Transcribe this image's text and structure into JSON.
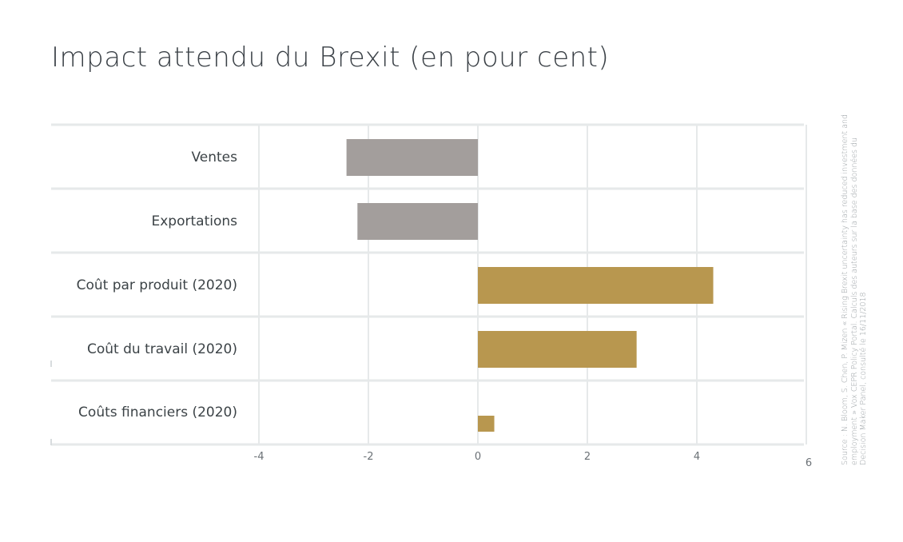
{
  "chart_data": {
    "type": "bar",
    "orientation": "horizontal",
    "title": "Impact attendu du Brexit (en pour cent)",
    "categories": [
      "Ventes",
      "Exportations",
      "Coût par produit (2020)",
      "Coût du travail (2020)",
      "Coûts financiers (2020)"
    ],
    "values": [
      -2.4,
      -2.2,
      4.3,
      2.9,
      0.3
    ],
    "bar_colors": [
      "#a39e9c",
      "#a39e9c",
      "#b8974f",
      "#b8974f",
      "#b8974f"
    ],
    "xlim": [
      -4,
      6
    ],
    "xticks": [
      "-4",
      "-2",
      "0",
      "2",
      "4",
      "6"
    ],
    "grid": true
  },
  "source": "Source : N. Bloom, S. Chen, P. Mizen « Rising Brexit uncertainty has reduced investment and employment » Vox CEPR Policy Portal. Calculs des auteurs sur la base des données du Decision Maker Panel, consulté le 16/11/2018"
}
